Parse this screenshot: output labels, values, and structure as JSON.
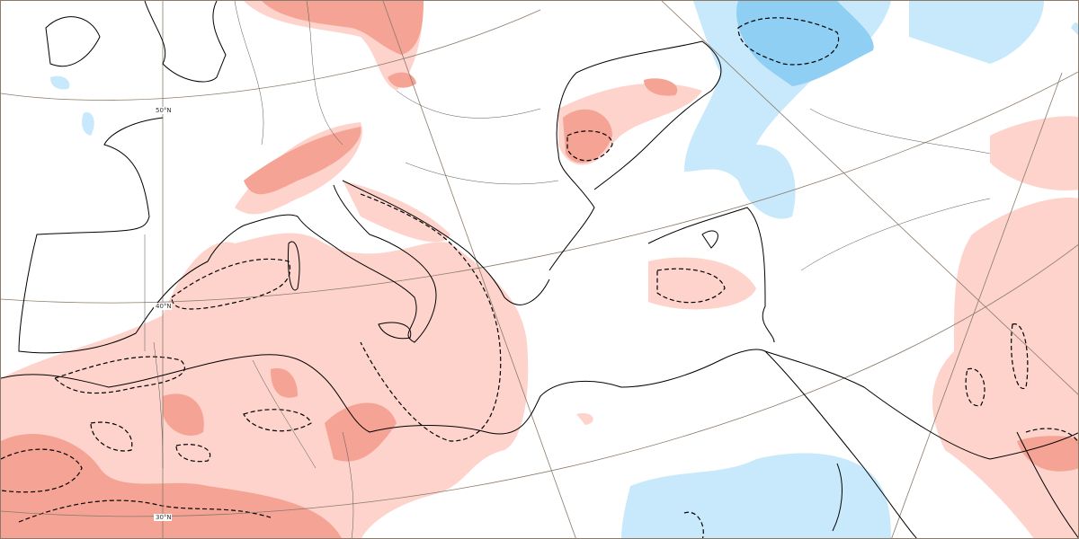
{
  "map": {
    "latitude_labels": [
      "50°N",
      "40°N",
      "30°N"
    ],
    "colors": {
      "positive_light": "#fdd3cc",
      "positive_strong": "#f5a394",
      "negative_light": "#c8e9fb",
      "negative_strong": "#8fcff4",
      "coastline": "#000000",
      "graticule": "#8a7a6a"
    }
  }
}
